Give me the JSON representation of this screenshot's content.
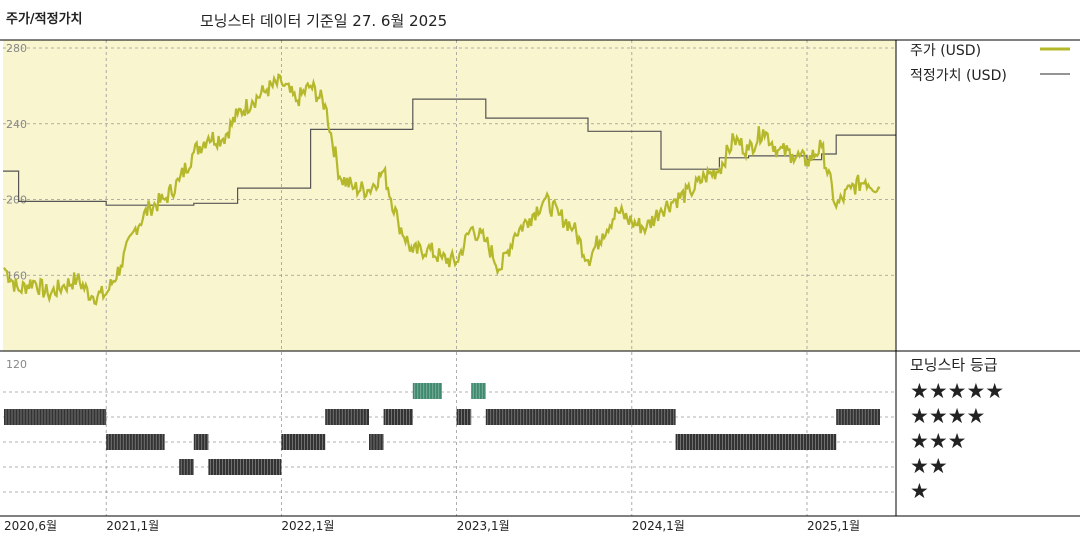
{
  "header": {
    "title": "주가/적정가치",
    "subtitle": "모닝스타 데이터 기준일 27. 6월 2025"
  },
  "legend": {
    "price_label": "주가 (USD)",
    "fair_label": "적정가치 (USD)",
    "price_color": "#b5b82a",
    "fair_color": "#555555"
  },
  "rating_title": "모닝스타 등급",
  "chart_data": [
    {
      "type": "line",
      "ylim": [
        120,
        290
      ],
      "yticks": [
        "280",
        "240",
        "200",
        "160",
        "120"
      ],
      "x_labels": [
        "2020,6월",
        "2021,1월",
        "2022,1월",
        "2023,1월",
        "2024,1월",
        "2025,1월"
      ],
      "series": [
        {
          "name": "주가 (USD)",
          "points": [
            [
              "2020-06",
              164
            ],
            [
              "2020-07",
              152
            ],
            [
              "2020-08",
              157
            ],
            [
              "2020-09",
              150
            ],
            [
              "2020-10",
              154
            ],
            [
              "2020-11",
              158
            ],
            [
              "2020-12",
              149
            ],
            [
              "2021-01",
              150
            ],
            [
              "2021-02",
              165
            ],
            [
              "2021-03",
              185
            ],
            [
              "2021-04",
              196
            ],
            [
              "2021-05",
              200
            ],
            [
              "2021-06",
              210
            ],
            [
              "2021-07",
              225
            ],
            [
              "2021-08",
              233
            ],
            [
              "2021-09",
              232
            ],
            [
              "2021-10",
              245
            ],
            [
              "2021-11",
              252
            ],
            [
              "2021-12",
              258
            ],
            [
              "2022-01",
              262
            ],
            [
              "2022-02",
              252
            ],
            [
              "2022-03",
              260
            ],
            [
              "2022-04",
              250
            ],
            [
              "2022-05",
              212
            ],
            [
              "2022-06",
              206
            ],
            [
              "2022-07",
              205
            ],
            [
              "2022-08",
              215
            ],
            [
              "2022-09",
              188
            ],
            [
              "2022-10",
              172
            ],
            [
              "2022-11",
              174
            ],
            [
              "2022-12",
              169
            ],
            [
              "2023-01",
              167
            ],
            [
              "2023-02",
              185
            ],
            [
              "2023-03",
              178
            ],
            [
              "2023-04",
              163
            ],
            [
              "2023-05",
              182
            ],
            [
              "2023-06",
              190
            ],
            [
              "2023-07",
              200
            ],
            [
              "2023-08",
              192
            ],
            [
              "2023-09",
              185
            ],
            [
              "2023-10",
              168
            ],
            [
              "2023-11",
              182
            ],
            [
              "2023-12",
              194
            ],
            [
              "2024-01",
              188
            ],
            [
              "2024-02",
              185
            ],
            [
              "2024-03",
              195
            ],
            [
              "2024-04",
              200
            ],
            [
              "2024-05",
              204
            ],
            [
              "2024-06",
              212
            ],
            [
              "2024-07",
              216
            ],
            [
              "2024-08",
              232
            ],
            [
              "2024-09",
              226
            ],
            [
              "2024-10",
              237
            ],
            [
              "2024-11",
              226
            ],
            [
              "2024-12",
              224
            ],
            [
              "2025-01",
              220
            ],
            [
              "2025-02",
              228
            ],
            [
              "2025-03",
              196
            ],
            [
              "2025-04",
              206
            ],
            [
              "2025-05",
              210
            ],
            [
              "2025-06",
              206
            ]
          ]
        },
        {
          "name": "적정가치 (USD)",
          "steps": [
            [
              "2020-06",
              215
            ],
            [
              "2020-07",
              199
            ],
            [
              "2021-01",
              197
            ],
            [
              "2021-07",
              198
            ],
            [
              "2021-10",
              206
            ],
            [
              "2022-03",
              237
            ],
            [
              "2022-10",
              253
            ],
            [
              "2023-03",
              243
            ],
            [
              "2023-10",
              236
            ],
            [
              "2024-03",
              216
            ],
            [
              "2024-07",
              222
            ],
            [
              "2024-09",
              223
            ],
            [
              "2025-01",
              221
            ],
            [
              "2025-02",
              224
            ],
            [
              "2025-03",
              234
            ]
          ]
        }
      ]
    },
    {
      "type": "heatmap",
      "rows": [
        "★★★★★",
        "★★★★",
        "★★★",
        "★★",
        "★"
      ],
      "ratings": [
        {
          "stars": 4,
          "from": "2020-06",
          "to": "2021-01"
        },
        {
          "stars": 3,
          "from": "2021-01",
          "to": "2021-05"
        },
        {
          "stars": 3,
          "from": "2021-07",
          "to": "2021-08"
        },
        {
          "stars": 2,
          "from": "2021-06",
          "to": "2021-07"
        },
        {
          "stars": 2,
          "from": "2021-08",
          "to": "2022-01"
        },
        {
          "stars": 3,
          "from": "2022-01",
          "to": "2022-04"
        },
        {
          "stars": 4,
          "from": "2022-04",
          "to": "2022-07"
        },
        {
          "stars": 3,
          "from": "2022-07",
          "to": "2022-08"
        },
        {
          "stars": 4,
          "from": "2022-08",
          "to": "2022-10"
        },
        {
          "stars": 5,
          "from": "2022-10",
          "to": "2022-12"
        },
        {
          "stars": 4,
          "from": "2023-01",
          "to": "2023-02"
        },
        {
          "stars": 5,
          "from": "2023-02",
          "to": "2023-03"
        },
        {
          "stars": 4,
          "from": "2023-03",
          "to": "2024-04"
        },
        {
          "stars": 3,
          "from": "2024-04",
          "to": "2025-03"
        },
        {
          "stars": 4,
          "from": "2025-03",
          "to": "2025-06"
        }
      ],
      "colors": {
        "default": "#333333",
        "five_star": "#3f8a6e"
      }
    }
  ]
}
